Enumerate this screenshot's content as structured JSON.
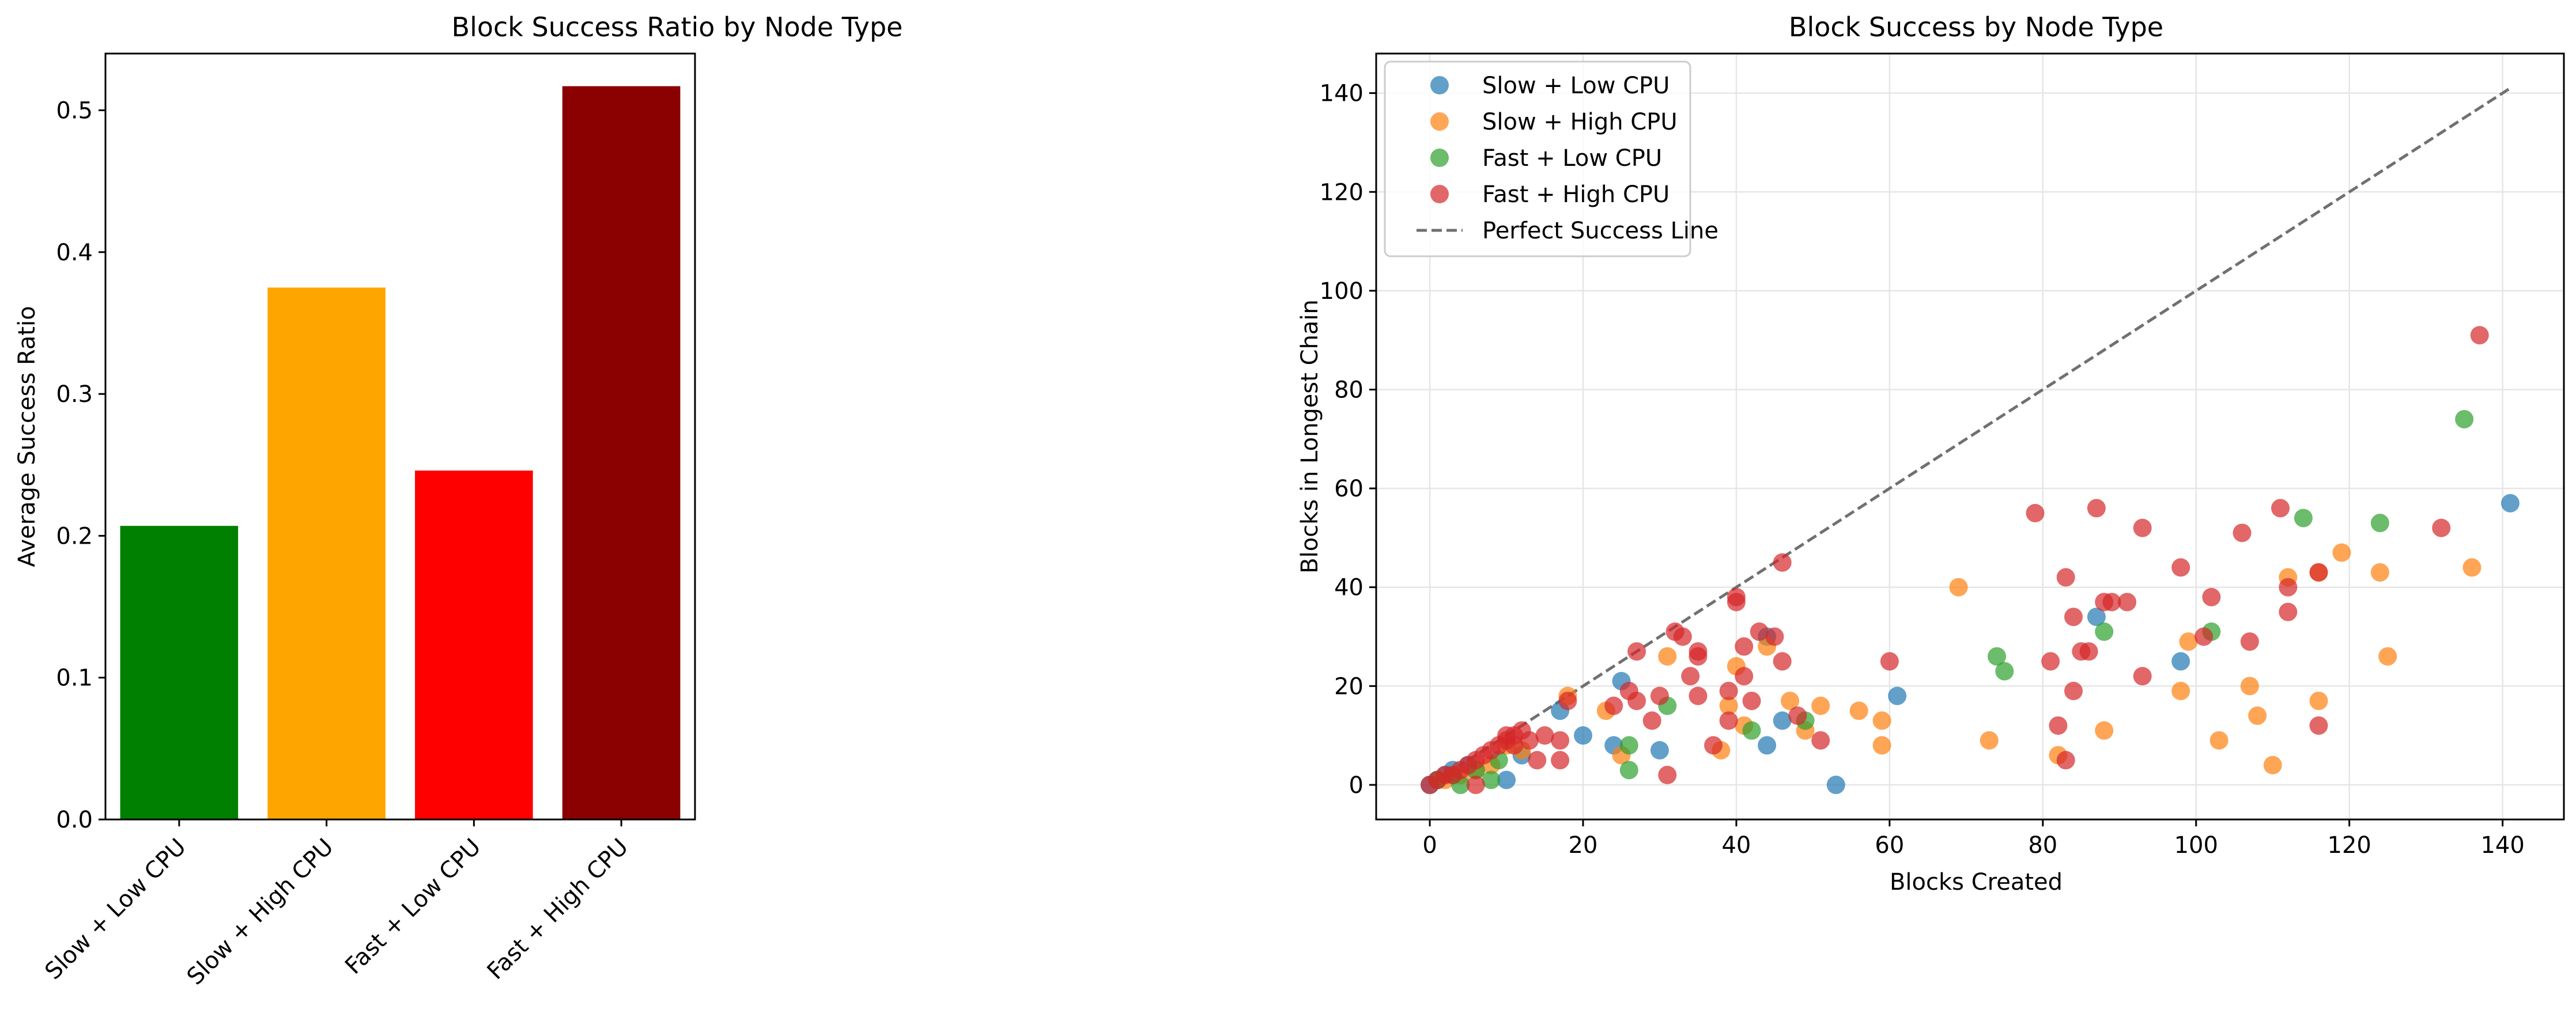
{
  "chart_data": [
    {
      "type": "bar",
      "title": "Block Success Ratio by Node Type",
      "xlabel": "",
      "ylabel": "Average Success Ratio",
      "categories": [
        "Slow + Low CPU",
        "Slow + High CPU",
        "Fast + Low CPU",
        "Fast + High CPU"
      ],
      "values": [
        0.207,
        0.375,
        0.246,
        0.517
      ],
      "colors": [
        "#008000",
        "#FFA500",
        "#FF0000",
        "#8B0000"
      ],
      "ylim": [
        0,
        0.54
      ],
      "yticks": [
        0.0,
        0.1,
        0.2,
        0.3,
        0.4,
        0.5
      ],
      "ytick_labels": [
        "0.0",
        "0.1",
        "0.2",
        "0.3",
        "0.4",
        "0.5"
      ],
      "grid": false
    },
    {
      "type": "scatter",
      "title": "Block Success by Node Type",
      "xlabel": "Blocks Created",
      "ylabel": "Blocks in Longest Chain",
      "xlim": [
        -7,
        148
      ],
      "ylim": [
        -7,
        148
      ],
      "xticks": [
        0,
        20,
        40,
        60,
        80,
        100,
        120,
        140
      ],
      "xtick_labels": [
        "0",
        "20",
        "40",
        "60",
        "80",
        "100",
        "120",
        "140"
      ],
      "yticks": [
        0,
        20,
        40,
        60,
        80,
        100,
        120,
        140
      ],
      "ytick_labels": [
        "0",
        "20",
        "40",
        "60",
        "80",
        "100",
        "120",
        "140"
      ],
      "grid": true,
      "legend_position": "top-left",
      "series": [
        {
          "name": "Slow + Low CPU",
          "color": "#1f77b4",
          "points": [
            [
              0,
              0
            ],
            [
              1,
              1
            ],
            [
              2,
              2
            ],
            [
              3,
              3
            ],
            [
              5,
              4
            ],
            [
              10,
              1
            ],
            [
              17,
              15
            ],
            [
              24,
              8
            ],
            [
              25,
              21
            ],
            [
              30,
              7
            ],
            [
              44,
              30
            ],
            [
              44,
              8
            ],
            [
              46,
              13
            ],
            [
              53,
              0
            ],
            [
              61,
              18
            ],
            [
              87,
              34
            ],
            [
              98,
              25
            ],
            [
              141,
              57
            ],
            [
              12,
              6
            ],
            [
              20,
              10
            ]
          ]
        },
        {
          "name": "Slow + High CPU",
          "color": "#ff7f0e",
          "points": [
            [
              2,
              1
            ],
            [
              4,
              2
            ],
            [
              6,
              3
            ],
            [
              8,
              4
            ],
            [
              12,
              7
            ],
            [
              18,
              18
            ],
            [
              23,
              15
            ],
            [
              25,
              6
            ],
            [
              31,
              26
            ],
            [
              38,
              7
            ],
            [
              39,
              16
            ],
            [
              40,
              24
            ],
            [
              41,
              12
            ],
            [
              44,
              28
            ],
            [
              49,
              11
            ],
            [
              51,
              16
            ],
            [
              56,
              15
            ],
            [
              59,
              8
            ],
            [
              59,
              13
            ],
            [
              69,
              40
            ],
            [
              73,
              9
            ],
            [
              82,
              6
            ],
            [
              88,
              11
            ],
            [
              98,
              19
            ],
            [
              99,
              29
            ],
            [
              103,
              9
            ],
            [
              107,
              20
            ],
            [
              108,
              14
            ],
            [
              110,
              4
            ],
            [
              112,
              42
            ],
            [
              116,
              17
            ],
            [
              116,
              43
            ],
            [
              119,
              47
            ],
            [
              124,
              43
            ],
            [
              125,
              26
            ],
            [
              136,
              44
            ],
            [
              47,
              17
            ],
            [
              10,
              8
            ]
          ]
        },
        {
          "name": "Fast + Low CPU",
          "color": "#2ca02c",
          "points": [
            [
              1,
              1
            ],
            [
              3,
              2
            ],
            [
              4,
              0
            ],
            [
              6,
              3
            ],
            [
              8,
              1
            ],
            [
              26,
              8
            ],
            [
              26,
              3
            ],
            [
              31,
              16
            ],
            [
              42,
              11
            ],
            [
              49,
              13
            ],
            [
              74,
              26
            ],
            [
              75,
              23
            ],
            [
              88,
              31
            ],
            [
              102,
              31
            ],
            [
              114,
              54
            ],
            [
              124,
              53
            ],
            [
              135,
              74
            ],
            [
              9,
              5
            ]
          ]
        },
        {
          "name": "Fast + High CPU",
          "color": "#d62728",
          "points": [
            [
              0,
              0
            ],
            [
              1,
              1
            ],
            [
              2,
              2
            ],
            [
              3,
              2
            ],
            [
              4,
              3
            ],
            [
              5,
              4
            ],
            [
              6,
              5
            ],
            [
              6,
              0
            ],
            [
              7,
              6
            ],
            [
              8,
              7
            ],
            [
              9,
              8
            ],
            [
              10,
              9
            ],
            [
              10,
              10
            ],
            [
              11,
              10
            ],
            [
              11,
              8
            ],
            [
              12,
              11
            ],
            [
              13,
              9
            ],
            [
              14,
              5
            ],
            [
              15,
              10
            ],
            [
              17,
              5
            ],
            [
              17,
              9
            ],
            [
              18,
              17
            ],
            [
              24,
              16
            ],
            [
              26,
              19
            ],
            [
              27,
              17
            ],
            [
              27,
              27
            ],
            [
              29,
              13
            ],
            [
              30,
              18
            ],
            [
              31,
              2
            ],
            [
              32,
              31
            ],
            [
              33,
              30
            ],
            [
              34,
              22
            ],
            [
              35,
              18
            ],
            [
              35,
              26
            ],
            [
              35,
              27
            ],
            [
              37,
              8
            ],
            [
              39,
              13
            ],
            [
              39,
              19
            ],
            [
              40,
              37
            ],
            [
              40,
              38
            ],
            [
              41,
              22
            ],
            [
              41,
              28
            ],
            [
              42,
              17
            ],
            [
              43,
              31
            ],
            [
              45,
              30
            ],
            [
              46,
              25
            ],
            [
              46,
              45
            ],
            [
              48,
              14
            ],
            [
              51,
              9
            ],
            [
              60,
              25
            ],
            [
              79,
              55
            ],
            [
              81,
              25
            ],
            [
              82,
              12
            ],
            [
              83,
              42
            ],
            [
              83,
              5
            ],
            [
              84,
              19
            ],
            [
              84,
              34
            ],
            [
              85,
              27
            ],
            [
              86,
              27
            ],
            [
              87,
              56
            ],
            [
              88,
              37
            ],
            [
              89,
              37
            ],
            [
              91,
              37
            ],
            [
              93,
              22
            ],
            [
              93,
              52
            ],
            [
              98,
              44
            ],
            [
              101,
              30
            ],
            [
              102,
              38
            ],
            [
              106,
              51
            ],
            [
              107,
              29
            ],
            [
              111,
              56
            ],
            [
              112,
              40
            ],
            [
              112,
              35
            ],
            [
              116,
              43
            ],
            [
              116,
              12
            ],
            [
              132,
              52
            ],
            [
              137,
              91
            ]
          ]
        }
      ],
      "reference_line": {
        "name": "Perfect Success Line",
        "color": "#707070",
        "points": [
          [
            0,
            0
          ],
          [
            141,
            141
          ]
        ]
      }
    }
  ]
}
